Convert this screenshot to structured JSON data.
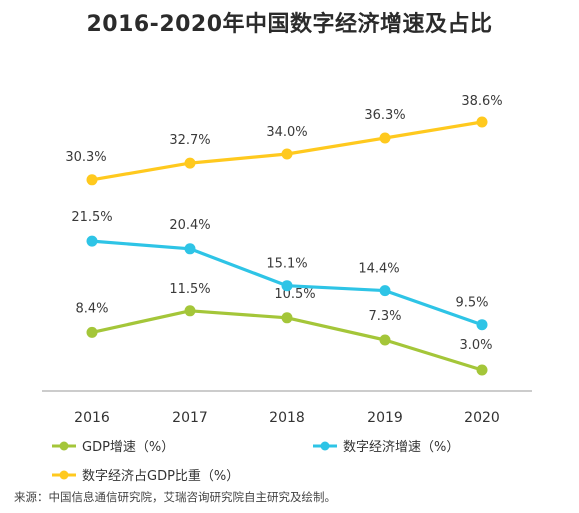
{
  "chart_data": {
    "type": "line",
    "title": "2016-2020年中国数字经济增速及占比",
    "categories": [
      "2016",
      "2017",
      "2018",
      "2019",
      "2020"
    ],
    "series": [
      {
        "name": "GDP增速（%）",
        "color": "#a4c639",
        "values": [
          8.4,
          11.5,
          10.5,
          7.3,
          3.0
        ],
        "labels": [
          "8.4%",
          "11.5%",
          "10.5%",
          "7.3%",
          "3.0%"
        ]
      },
      {
        "name": "数字经济增速（%）",
        "color": "#2ec4e6",
        "values": [
          21.5,
          20.4,
          15.1,
          14.4,
          9.5
        ],
        "labels": [
          "21.5%",
          "20.4%",
          "15.1%",
          "14.4%",
          "9.5%"
        ]
      },
      {
        "name": "数字经济占GDP比重（%）",
        "color": "#ffc91e",
        "values": [
          30.3,
          32.7,
          34.0,
          36.3,
          38.6
        ],
        "labels": [
          "30.3%",
          "32.7%",
          "34.0%",
          "36.3%",
          "38.6%"
        ]
      }
    ],
    "legend_position": "bottom",
    "grid": false
  },
  "source_note": "来源：中国信息通信研究院，艾瑞咨询研究院自主研究及绘制。"
}
